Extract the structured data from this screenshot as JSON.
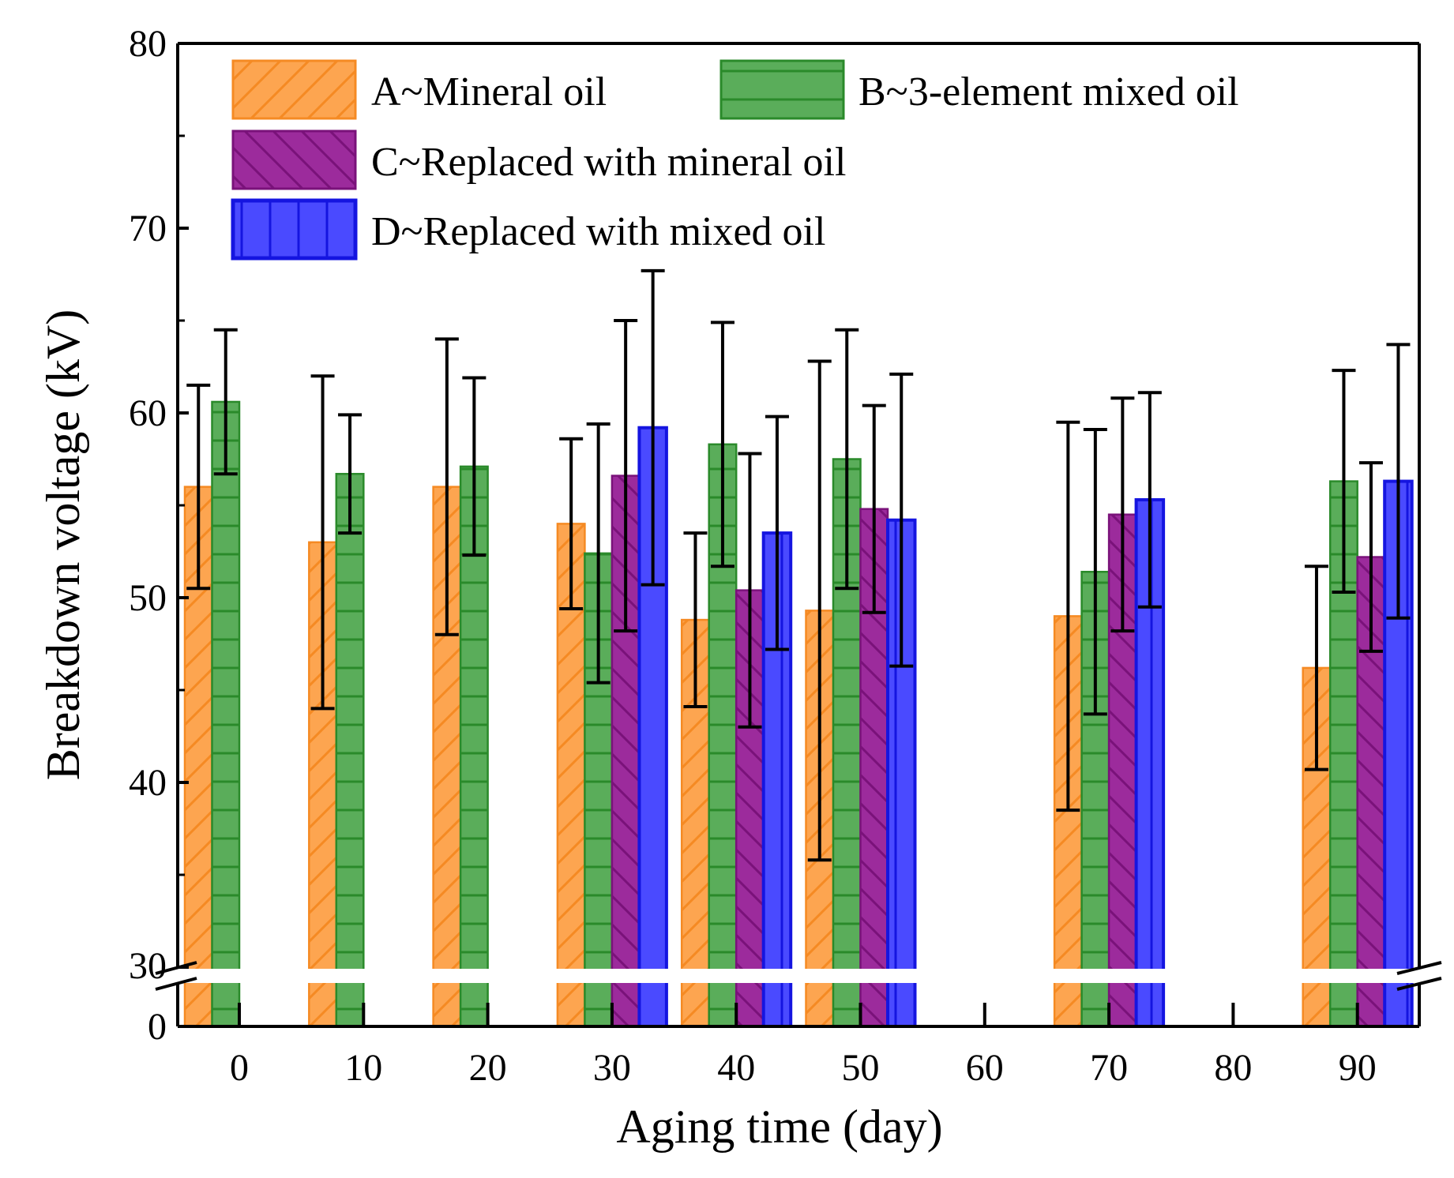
{
  "chart_data": {
    "type": "bar",
    "title": "",
    "xlabel": "Aging time (day)",
    "ylabel": "Breakdown voltage (kV)",
    "ylim": [
      0,
      80
    ],
    "y_axis_break": [
      0,
      30
    ],
    "yticks": [
      "0",
      "30",
      "40",
      "50",
      "60",
      "70",
      "80"
    ],
    "categories": [
      "0",
      "10",
      "20",
      "30",
      "40",
      "50",
      "60",
      "70",
      "80",
      "90"
    ],
    "series": [
      {
        "name": "A~Mineral oil",
        "color": "#fda550",
        "edge": "#f58a23",
        "hatch": "forward-diagonal",
        "values": [
          56.0,
          53.0,
          56.0,
          54.0,
          48.8,
          49.3,
          null,
          49.0,
          null,
          46.2
        ],
        "errors": [
          5.5,
          9.0,
          8.0,
          4.6,
          4.7,
          13.5,
          null,
          10.5,
          null,
          5.5
        ]
      },
      {
        "name": "B~3-element mixed oil",
        "color": "#5aad5a",
        "edge": "#2a8a2a",
        "hatch": "horizontal",
        "values": [
          60.6,
          56.7,
          57.1,
          52.4,
          58.3,
          57.5,
          null,
          51.4,
          null,
          56.3
        ],
        "errors": [
          3.9,
          3.2,
          4.8,
          7.0,
          6.6,
          7.0,
          null,
          7.7,
          null,
          6.0
        ]
      },
      {
        "name": "C~Replaced with mineral oil",
        "color": "#9c2b9c",
        "edge": "#7a127a",
        "hatch": "back-diagonal",
        "values": [
          null,
          null,
          null,
          56.6,
          50.4,
          54.8,
          null,
          54.5,
          null,
          52.2
        ],
        "errors": [
          null,
          null,
          null,
          8.4,
          7.4,
          5.6,
          null,
          6.3,
          null,
          5.1
        ]
      },
      {
        "name": "D~Replaced with mixed oil",
        "color": "#4a4aff",
        "edge": "#1515e0",
        "hatch": "vertical",
        "values": [
          null,
          null,
          null,
          59.2,
          53.5,
          54.2,
          null,
          55.3,
          null,
          56.3
        ],
        "errors": [
          null,
          null,
          null,
          8.5,
          6.3,
          7.9,
          null,
          5.8,
          null,
          7.4
        ]
      }
    ],
    "legend_position": "top"
  }
}
